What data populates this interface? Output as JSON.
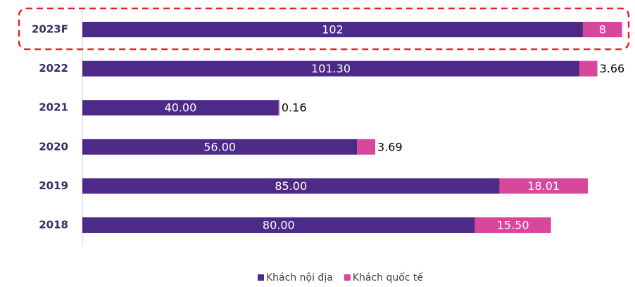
{
  "chart_data": {
    "type": "bar",
    "orientation": "horizontal",
    "stacked": true,
    "categories": [
      "2023F",
      "2022",
      "2021",
      "2020",
      "2019",
      "2018"
    ],
    "series": [
      {
        "name": "Khách nội địa",
        "color": "#4d2a88",
        "values": [
          102,
          101.3,
          40,
          56,
          85,
          80
        ],
        "value_labels": [
          "102",
          "101.30",
          "40.00",
          "56.00",
          "85.00",
          "80.00"
        ]
      },
      {
        "name": "Khách quốc tế",
        "color": "#d9479d",
        "values": [
          8,
          3.66,
          0.16,
          3.69,
          18.01,
          15.5
        ],
        "value_labels": [
          "8",
          "3.66",
          "0.16",
          "3.69",
          "18.01",
          "15.50"
        ]
      }
    ],
    "highlight_color": "#e8202a",
    "legend": "bottom"
  }
}
